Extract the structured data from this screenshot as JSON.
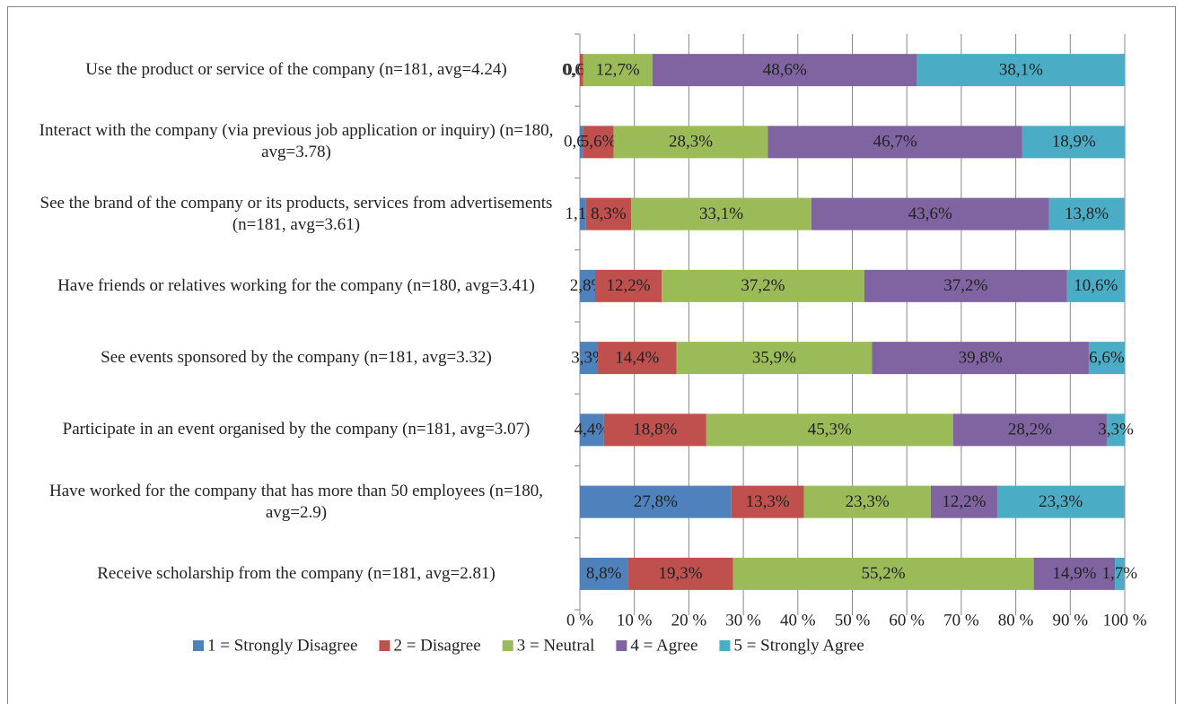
{
  "chart_data": {
    "type": "stacked-bar-horizontal",
    "categories": [
      "Use the product or service of the company (n=181, avg=4.24)",
      "Interact with the company (via previous job application or inquiry) (n=180, avg=3.78)",
      "See the brand of the company or its products, services from advertisements (n=181, avg=3.61)",
      "Have friends or relatives working for the company (n=180, avg=3.41)",
      "See events sponsored by the company (n=181, avg=3.32)",
      "Participate in an event organised by the company (n=181, avg=3.07)",
      "Have worked for the company that has more than 50 employees (n=180, avg=2.9)",
      "Receive scholarship from the company (n=181, avg=2.81)"
    ],
    "series": [
      {
        "name": "1 = Strongly Disagree",
        "color": "#4f81bd",
        "values": [
          0.0,
          0.6,
          1.1,
          2.8,
          3.3,
          4.4,
          27.8,
          8.8
        ],
        "value_labels": [
          "0,0%",
          "0,6%",
          "1,1%",
          "2,8%",
          "3,3%",
          "4,4%",
          "27,8%",
          "8,8%"
        ]
      },
      {
        "name": "2 = Disagree",
        "color": "#c0504d",
        "values": [
          0.6,
          5.6,
          8.3,
          12.2,
          14.4,
          18.8,
          13.3,
          19.3
        ],
        "value_labels": [
          "0,6%",
          "5,6%",
          "8,3%",
          "12,2%",
          "14,4%",
          "18,8%",
          "13,3%",
          "19,3%"
        ]
      },
      {
        "name": "3 = Neutral",
        "color": "#9bbb59",
        "values": [
          12.7,
          28.3,
          33.1,
          37.2,
          35.9,
          45.3,
          23.3,
          55.2
        ],
        "value_labels": [
          "12,7%",
          "28,3%",
          "33,1%",
          "37,2%",
          "35,9%",
          "45,3%",
          "23,3%",
          "55,2%"
        ]
      },
      {
        "name": "4 = Agree",
        "color": "#8064a2",
        "values": [
          48.6,
          46.7,
          43.6,
          37.2,
          39.8,
          28.2,
          12.2,
          14.9
        ],
        "value_labels": [
          "48,6%",
          "46,7%",
          "43,6%",
          "37,2%",
          "39,8%",
          "28,2%",
          "12,2%",
          "14,9%"
        ]
      },
      {
        "name": "5 = Strongly Agree",
        "color": "#4bacc6",
        "values": [
          38.1,
          18.9,
          13.8,
          10.6,
          6.6,
          3.3,
          23.3,
          1.7
        ],
        "value_labels": [
          "38,1%",
          "18,9%",
          "13,8%",
          "10,6%",
          "6,6%",
          "3,3%",
          "23,3%",
          "1,7%"
        ]
      }
    ],
    "xlim": [
      0,
      100
    ],
    "xticks": [
      {
        "value": 0,
        "label": "0 %"
      },
      {
        "value": 10,
        "label": "10 %"
      },
      {
        "value": 20,
        "label": "20 %"
      },
      {
        "value": 30,
        "label": "30 %"
      },
      {
        "value": 40,
        "label": "40 %"
      },
      {
        "value": 50,
        "label": "50 %"
      },
      {
        "value": 60,
        "label": "60 %"
      },
      {
        "value": 70,
        "label": "70 %"
      },
      {
        "value": 80,
        "label": "80 %"
      },
      {
        "value": 90,
        "label": "90 %"
      },
      {
        "value": 100,
        "label": "100 %"
      }
    ],
    "grid": true,
    "legend": "bottom"
  }
}
